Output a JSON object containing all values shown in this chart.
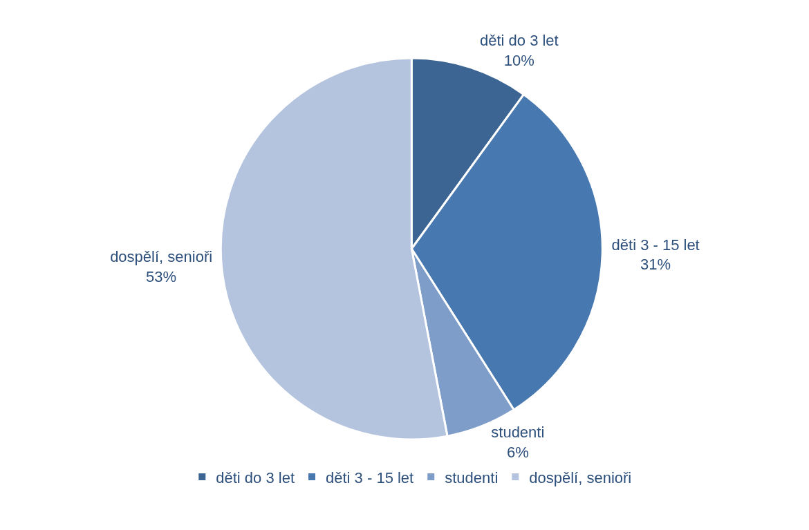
{
  "chart_data": {
    "type": "pie",
    "categories": [
      "děti do 3 let",
      "děti 3 - 15 let",
      "studenti",
      "dospělí, senioři"
    ],
    "values": [
      10,
      31,
      6,
      53
    ],
    "value_labels": [
      "10%",
      "31%",
      "6%",
      "53%"
    ],
    "colors": [
      "#3d6594",
      "#4878b0",
      "#7f9dc9",
      "#b4c3de"
    ],
    "legend": "bottom"
  }
}
